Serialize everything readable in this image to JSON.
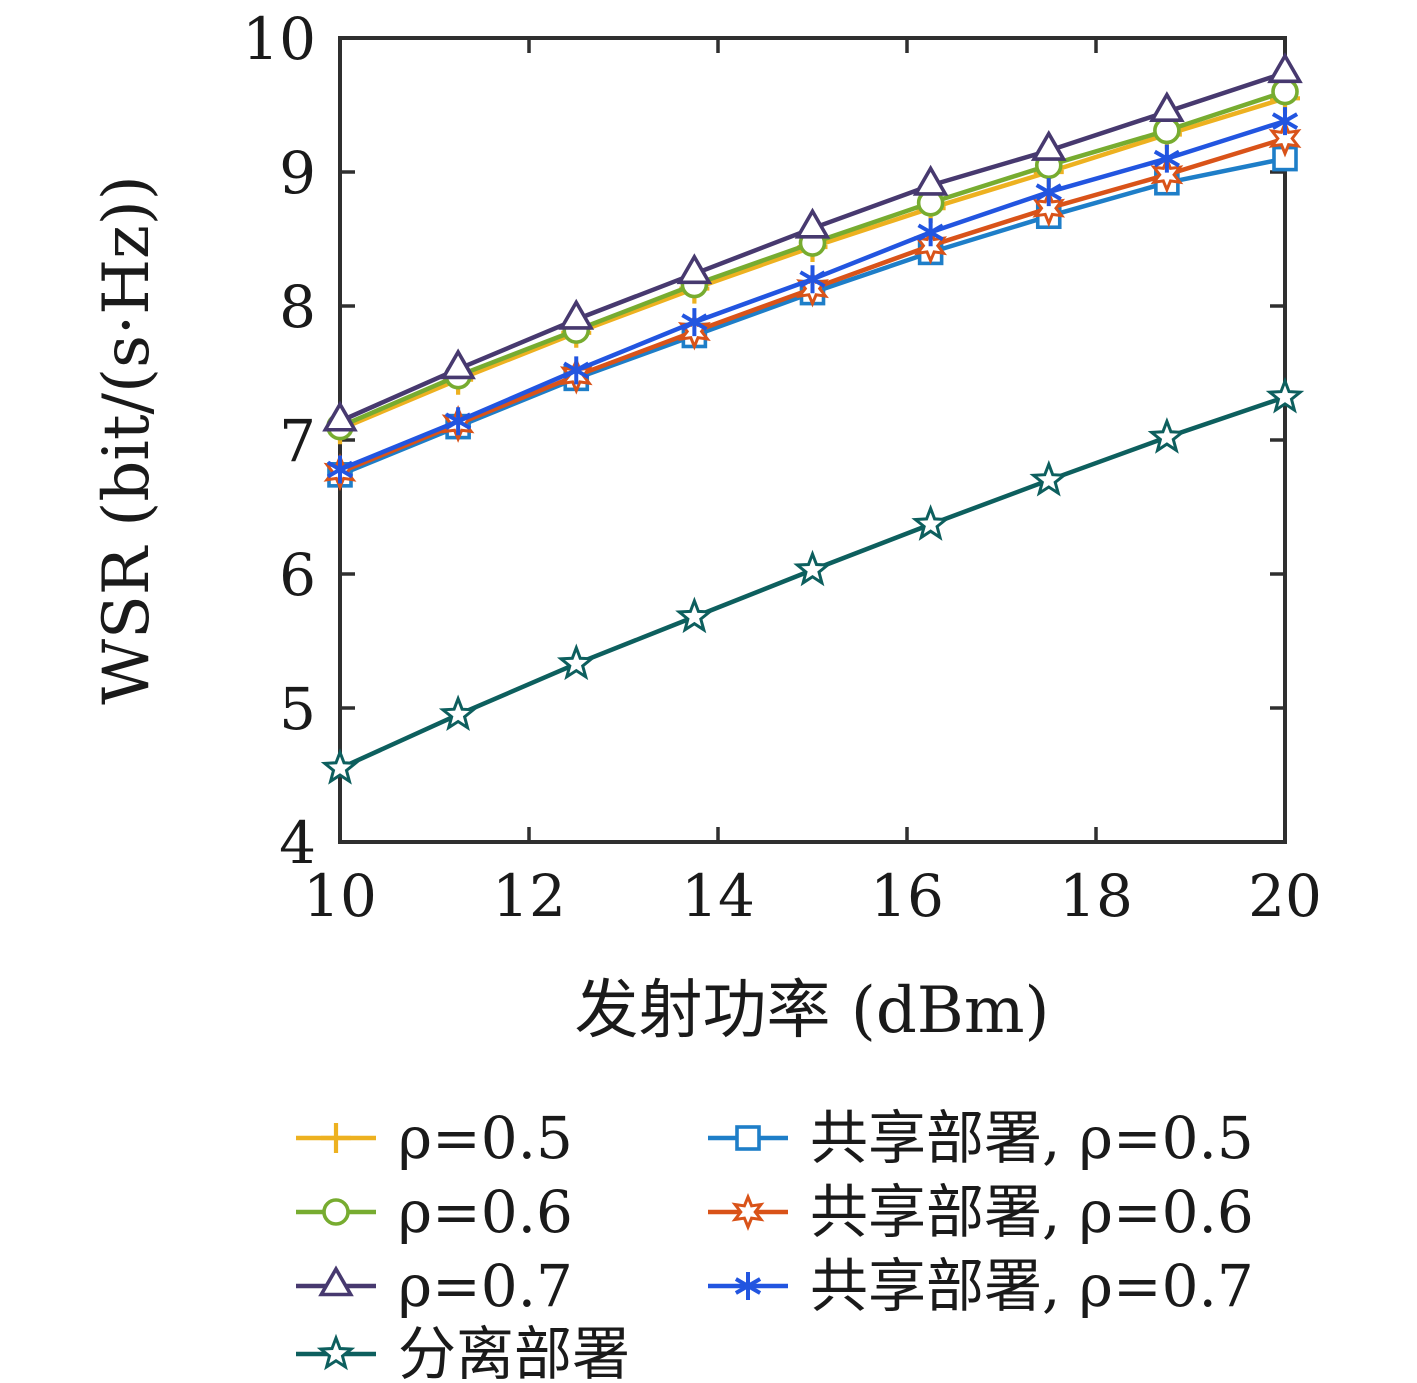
{
  "chart_data": {
    "type": "line",
    "title": "",
    "xlabel": "发射功率 (dBm)",
    "ylabel": "WSR (bit/(s·Hz))",
    "xlim": [
      10,
      20
    ],
    "ylim": [
      4,
      10
    ],
    "xticks": [
      10,
      12,
      14,
      16,
      18,
      20
    ],
    "yticks": [
      4,
      5,
      6,
      7,
      8,
      9,
      10
    ],
    "grid": false,
    "legend_position": "below-two-columns",
    "x": [
      10,
      11.25,
      12.5,
      13.75,
      15,
      16.25,
      17.5,
      18.75,
      20
    ],
    "series": [
      {
        "name": "ρ=0.5",
        "marker": "plus",
        "color": "#EDB120",
        "values": [
          7.08,
          7.45,
          7.8,
          8.13,
          8.44,
          8.73,
          9.0,
          9.28,
          9.55
        ]
      },
      {
        "name": "ρ=0.6",
        "marker": "circle",
        "color": "#77AC30",
        "values": [
          7.1,
          7.48,
          7.82,
          8.16,
          8.47,
          8.77,
          9.05,
          9.31,
          9.6
        ]
      },
      {
        "name": "ρ=0.7",
        "marker": "triangle",
        "color": "#47396F",
        "values": [
          7.14,
          7.53,
          7.9,
          8.24,
          8.58,
          8.9,
          9.16,
          9.45,
          9.74
        ]
      },
      {
        "name": "共享部署, ρ=0.5",
        "marker": "square",
        "color": "#1E7EC8",
        "values": [
          6.74,
          7.1,
          7.46,
          7.78,
          8.1,
          8.4,
          8.67,
          8.92,
          9.1
        ]
      },
      {
        "name": "共享部署, ρ=0.6",
        "marker": "hexagram",
        "color": "#D95319",
        "values": [
          6.76,
          7.12,
          7.48,
          7.81,
          8.13,
          8.45,
          8.73,
          8.98,
          9.25
        ]
      },
      {
        "name": "共享部署, ρ=0.7",
        "marker": "asterisk",
        "color": "#2255E0",
        "values": [
          6.78,
          7.14,
          7.52,
          7.88,
          8.2,
          8.55,
          8.85,
          9.1,
          9.38
        ]
      },
      {
        "name": "分离部署",
        "marker": "star",
        "color": "#0D5F5E",
        "values": [
          4.55,
          4.95,
          5.33,
          5.68,
          6.03,
          6.37,
          6.7,
          7.02,
          7.32
        ]
      }
    ],
    "legend_columns": [
      [
        0,
        1,
        2,
        6
      ],
      [
        3,
        4,
        5
      ]
    ]
  }
}
